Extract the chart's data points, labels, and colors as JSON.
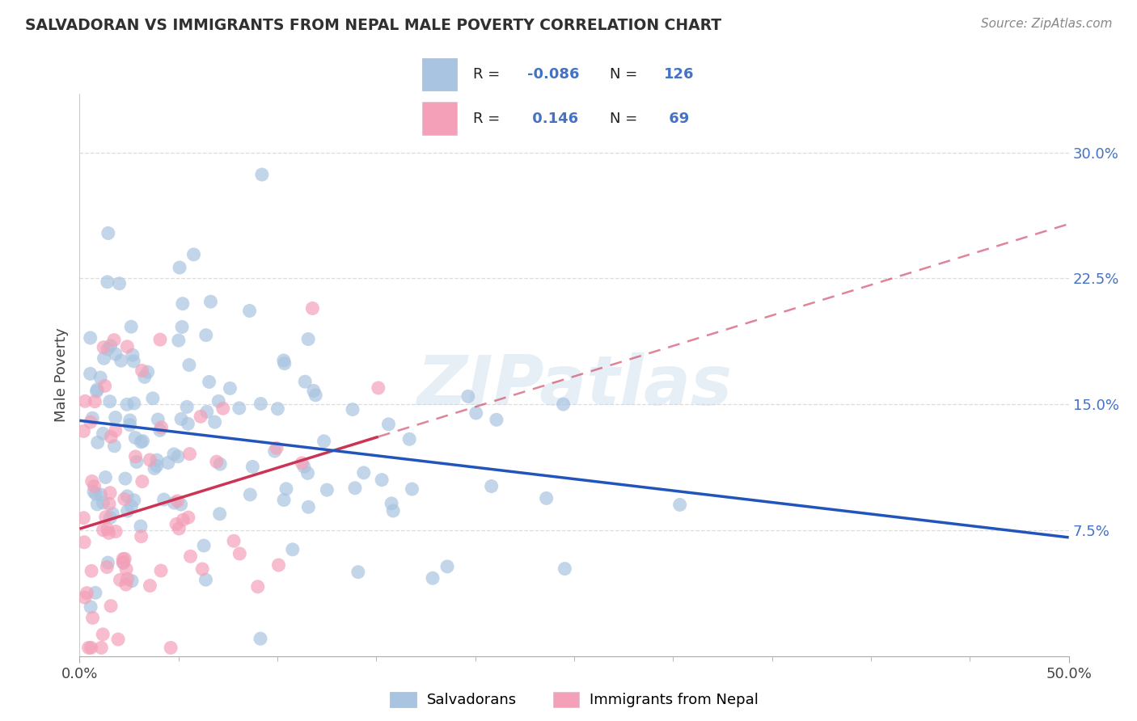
{
  "title": "SALVADORAN VS IMMIGRANTS FROM NEPAL MALE POVERTY CORRELATION CHART",
  "source": "Source: ZipAtlas.com",
  "ylabel": "Male Poverty",
  "xlim": [
    0.0,
    0.5
  ],
  "ylim": [
    0.0,
    0.335
  ],
  "yticks": [
    0.075,
    0.15,
    0.225,
    0.3
  ],
  "ytick_labels": [
    "7.5%",
    "15.0%",
    "22.5%",
    "30.0%"
  ],
  "salvadoran_R": -0.086,
  "salvadoran_N": 126,
  "nepal_R": 0.146,
  "nepal_N": 69,
  "salvadoran_color": "#a8c4e0",
  "nepal_color": "#f4a0b8",
  "salvadoran_line_color": "#2255bb",
  "nepal_line_color": "#cc3355",
  "nepal_dash_color": "#cc3355",
  "background_color": "#ffffff",
  "watermark": "ZIPatlas",
  "legend_text_color": "#4472c4",
  "grid_color": "#dddddd",
  "title_color": "#303030",
  "source_color": "#888888",
  "axis_label_color": "#444444",
  "ytick_color": "#4472c4",
  "xtick_color": "#444444"
}
